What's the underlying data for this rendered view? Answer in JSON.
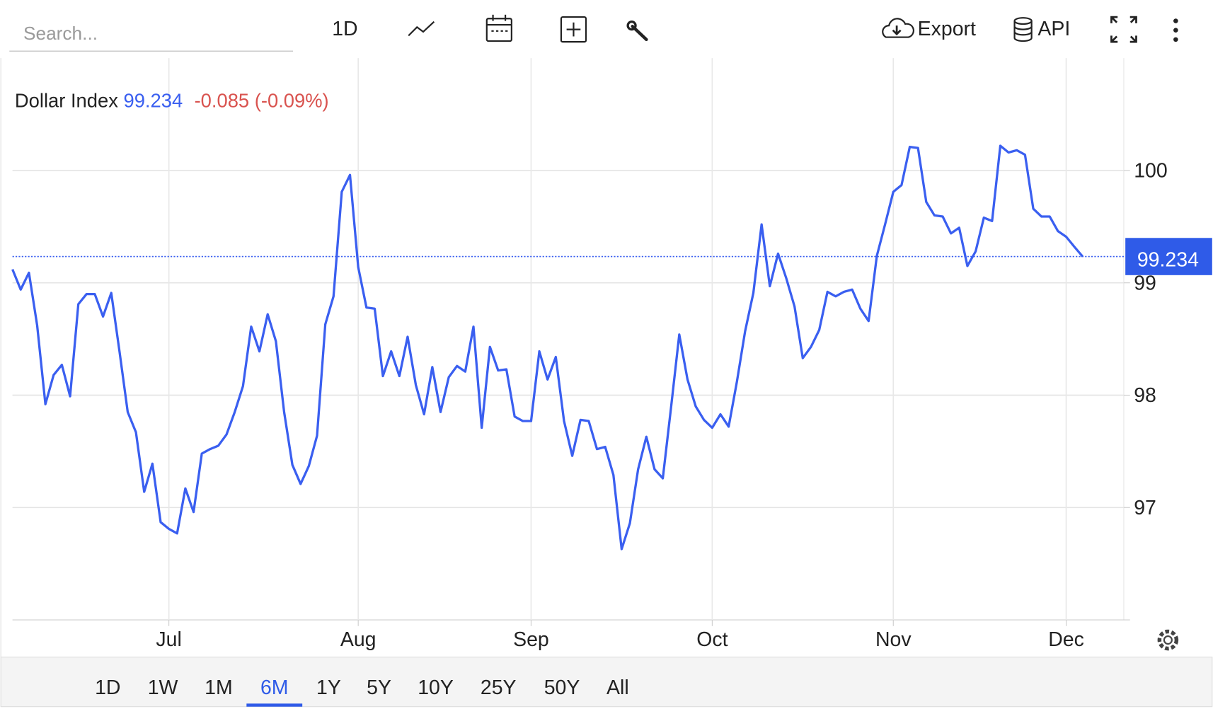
{
  "ui": {
    "search_placeholder": "Search...",
    "interval": "1D",
    "export": "Export",
    "api": "API",
    "ranges": [
      "1D",
      "1W",
      "1M",
      "6M",
      "1Y",
      "5Y",
      "10Y",
      "25Y",
      "50Y",
      "All"
    ],
    "active_range": 3
  },
  "chart_data": {
    "type": "line",
    "title": "Dollar Index",
    "last": 99.234,
    "change": -0.085,
    "change_pct": "(-0.09%)",
    "color": "#3a5ff0",
    "values": [
      99.12,
      98.94,
      99.09,
      98.62,
      97.92,
      98.18,
      98.27,
      97.99,
      98.81,
      98.9,
      98.9,
      98.7,
      98.91,
      98.39,
      97.85,
      97.67,
      97.14,
      97.39,
      96.87,
      96.81,
      96.77,
      97.17,
      96.96,
      97.48,
      97.52,
      97.55,
      97.65,
      97.85,
      98.08,
      98.61,
      98.39,
      98.72,
      98.48,
      97.85,
      97.38,
      97.21,
      97.37,
      97.64,
      98.63,
      98.88,
      99.81,
      99.96,
      99.14,
      98.78,
      98.77,
      98.17,
      98.39,
      98.17,
      98.52,
      98.09,
      97.83,
      98.25,
      97.85,
      98.16,
      98.26,
      98.21,
      98.61,
      97.71,
      98.43,
      98.22,
      98.23,
      97.81,
      97.77,
      97.77,
      98.39,
      98.14,
      98.34,
      97.77,
      97.46,
      97.78,
      97.77,
      97.52,
      97.54,
      97.29,
      96.63,
      96.86,
      97.34,
      97.63,
      97.34,
      97.26,
      97.89,
      98.54,
      98.14,
      97.9,
      97.78,
      97.71,
      97.83,
      97.72,
      98.12,
      98.57,
      98.91,
      99.52,
      98.97,
      99.26,
      99.04,
      98.79,
      98.33,
      98.43,
      98.58,
      98.92,
      98.88,
      98.92,
      98.94,
      98.77,
      98.66,
      99.24,
      99.52,
      99.81,
      99.87,
      100.21,
      100.2,
      99.72,
      99.6,
      99.59,
      99.44,
      99.49,
      99.15,
      99.28,
      99.58,
      99.55,
      100.22,
      100.16,
      100.18,
      100.14,
      99.66,
      99.59,
      99.59,
      99.46,
      99.41,
      99.32,
      99.234
    ],
    "xlim": [
      0,
      135
    ],
    "xticks": [
      {
        "value": 19,
        "label": "Jul"
      },
      {
        "value": 42,
        "label": "Aug"
      },
      {
        "value": 63,
        "label": "Sep"
      },
      {
        "value": 85,
        "label": "Oct"
      },
      {
        "value": 107,
        "label": "Nov"
      },
      {
        "value": 128,
        "label": "Dec"
      }
    ],
    "ylim": [
      96,
      101
    ],
    "yticks": [
      97,
      98,
      99,
      100
    ],
    "grid": true
  }
}
